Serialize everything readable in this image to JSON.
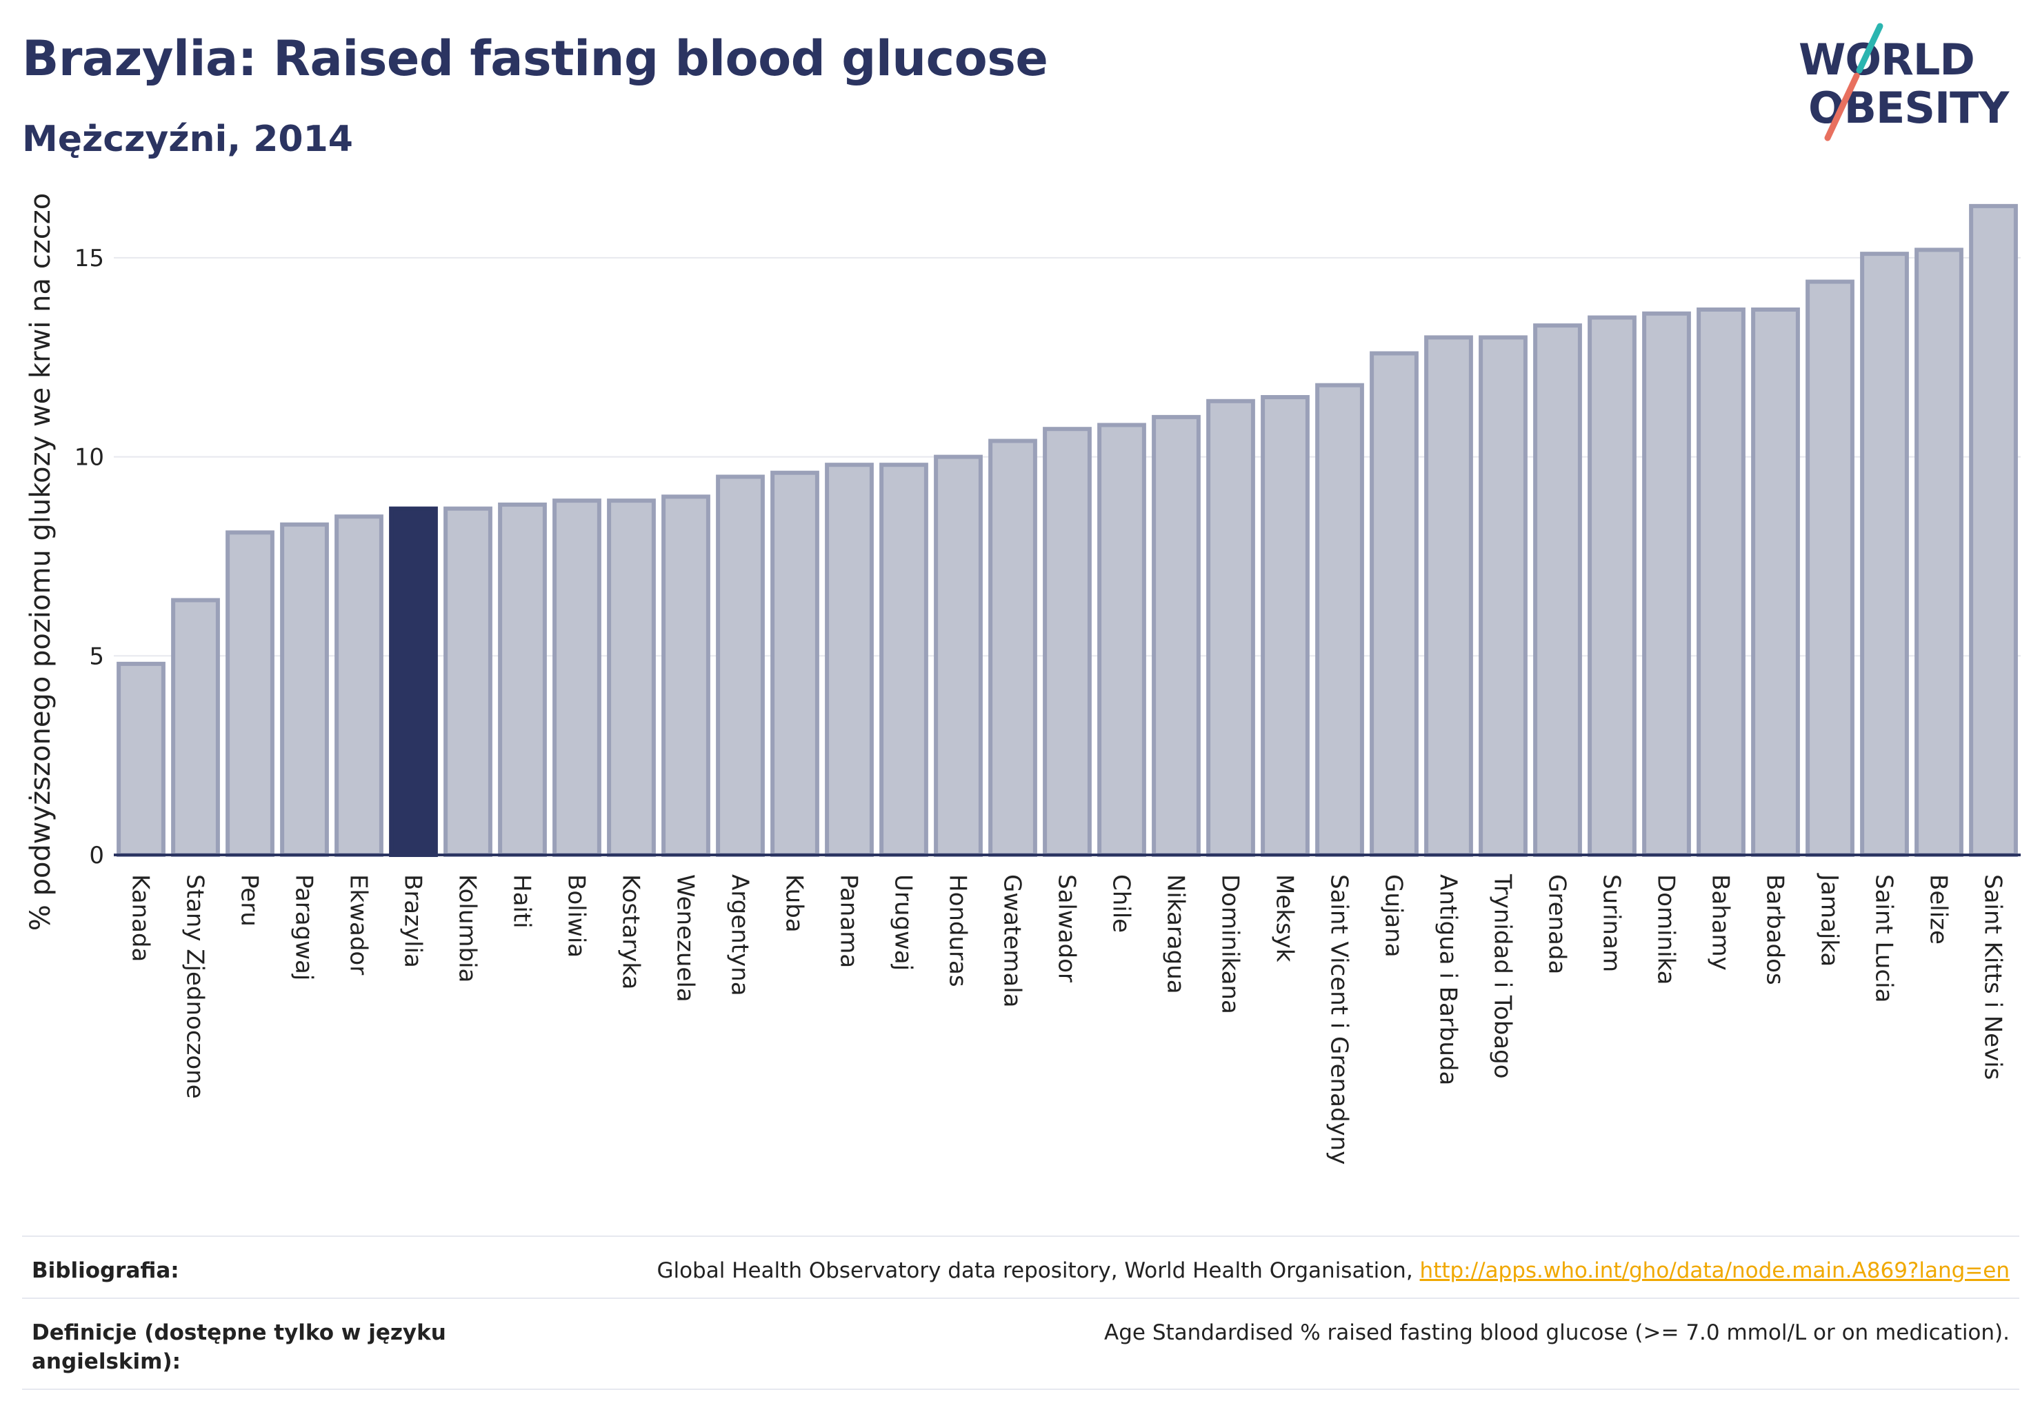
{
  "header": {
    "title": "Brazylia: Raised fasting blood glucose",
    "subtitle": "Mężczyźni, 2014"
  },
  "logo": {
    "line1": "WORLD",
    "line2": "OBESITY",
    "text_color": "#2b3461",
    "slash_top_color": "#2bb5b0",
    "slash_bottom_color": "#e8705f"
  },
  "chart_data": {
    "type": "bar",
    "ylabel": "% podwyższonego poziomu glukozy we krwi na czczo",
    "ylim": [
      0,
      16.8
    ],
    "yticks": [
      0,
      5,
      10,
      15
    ],
    "grid": true,
    "highlight": "Brazylia",
    "colors": {
      "bar": "#bfc3d0",
      "bar_border": "#9aa0b8",
      "highlight": "#2b3461",
      "axis": "#2b3461",
      "grid": "#e7e8ee"
    },
    "categories": [
      "Kanada",
      "Stany Zjednoczone",
      "Peru",
      "Paragwaj",
      "Ekwador",
      "Brazylia",
      "Kolumbia",
      "Haiti",
      "Boliwia",
      "Kostaryka",
      "Wenezuela",
      "Argentyna",
      "Kuba",
      "Panama",
      "Urugwaj",
      "Honduras",
      "Gwatemala",
      "Salwador",
      "Chile",
      "Nikaragua",
      "Dominikana",
      "Meksyk",
      "Saint Vicent i Grenadyny",
      "Gujana",
      "Antigua i Barbuda",
      "Trynidad i Tobago",
      "Grenada",
      "Surinam",
      "Dominika",
      "Bahamy",
      "Barbados",
      "Jamajka",
      "Saint Lucia",
      "Belize",
      "Saint Kitts i Nevis"
    ],
    "values": [
      4.8,
      6.4,
      8.1,
      8.3,
      8.5,
      8.7,
      8.7,
      8.8,
      8.9,
      8.9,
      9.0,
      9.5,
      9.6,
      9.8,
      9.8,
      10.0,
      10.4,
      10.7,
      10.8,
      11.0,
      11.4,
      11.5,
      11.8,
      12.6,
      13.0,
      13.0,
      13.3,
      13.5,
      13.6,
      13.7,
      13.7,
      14.4,
      15.1,
      15.2,
      16.3
    ]
  },
  "footer": {
    "bibliography_label": "Bibliografia:",
    "bibliography_text": "Global Health Observatory data repository, World Health Organisation, ",
    "bibliography_link": "http://apps.who.int/gho/data/node.main.A869?lang=en",
    "definition_label": "Definicje (dostępne tylko w języku angielskim):",
    "definition_text": "Age Standardised % raised fasting blood glucose (>= 7.0 mmol/L or on medication)."
  }
}
